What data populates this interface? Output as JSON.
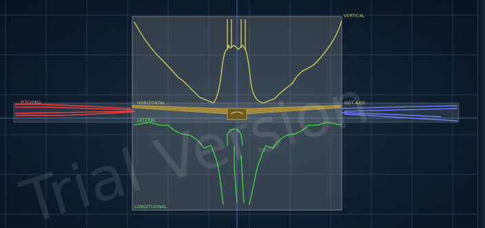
{
  "viewport": {
    "labels": {
      "top_right": "VERTICAL",
      "mid_left": "HORIZONTAL",
      "mid_right": "HOT AXIS",
      "lower_left": "LATERAL",
      "bottom_left": "LONGITUDINAL",
      "far_left": "PITCHING"
    },
    "watermark": "Trial Version"
  },
  "colors": {
    "background": "#0e1d2e",
    "grid": "#3a5068",
    "panel": "#8a8f8f",
    "yellow_trace": "#d9d45a",
    "green_trace": "#43d843",
    "red_trace": "#ff3b3b",
    "blue_trace": "#6f7fff",
    "gold_bar": "#a48a3c"
  }
}
